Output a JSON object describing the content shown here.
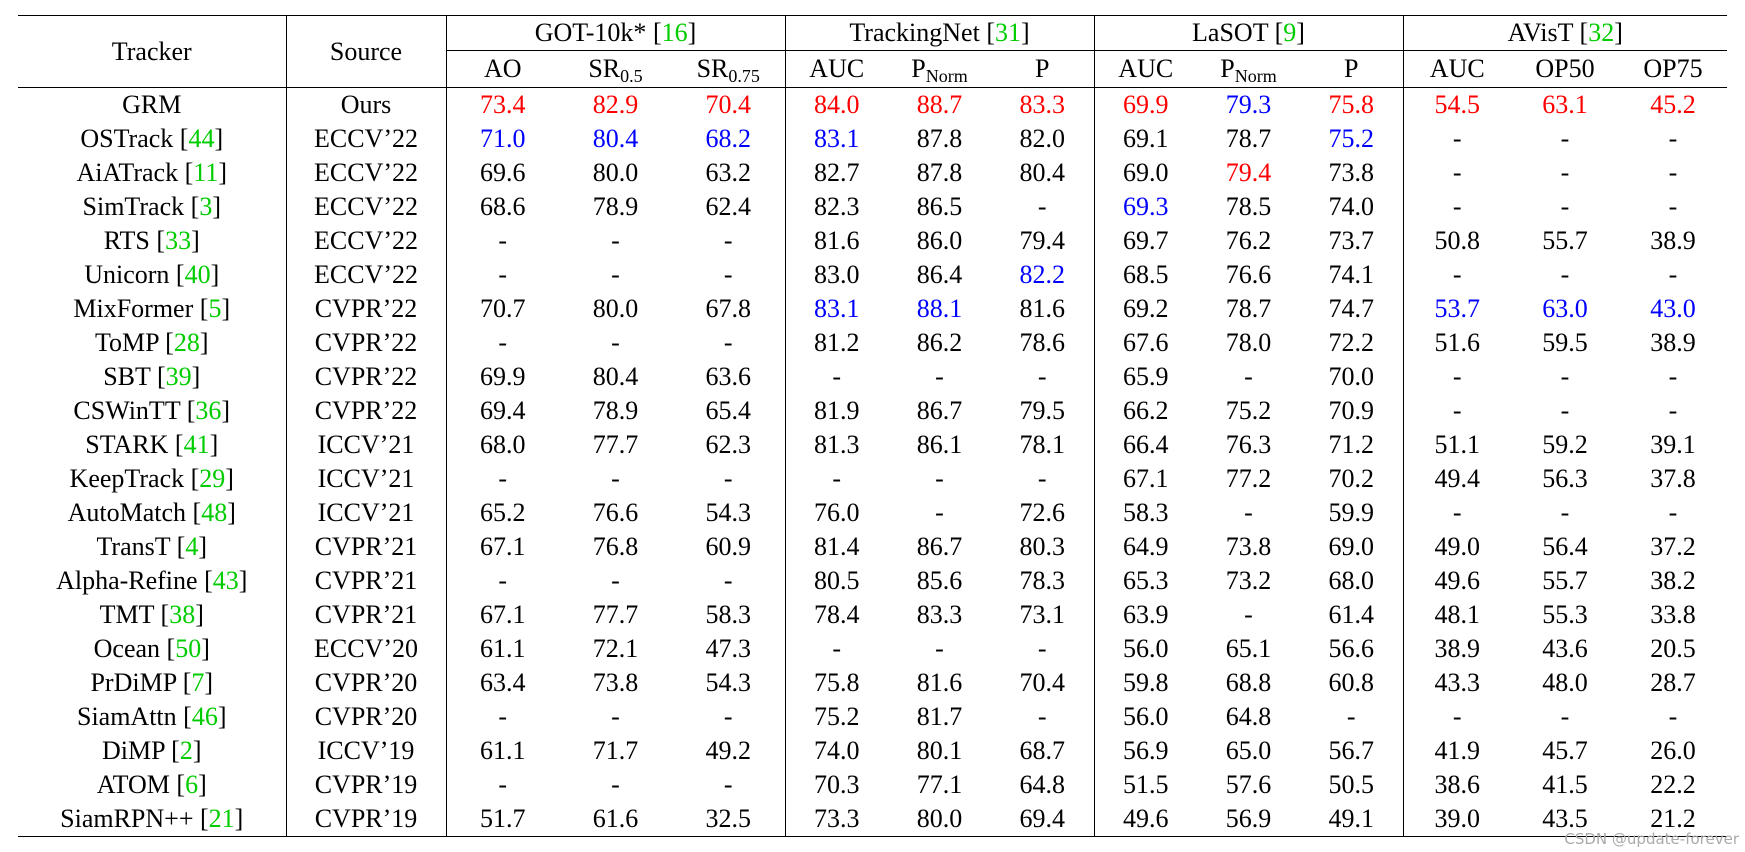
{
  "header": {
    "tracker": "Tracker",
    "source": "Source",
    "cite_open": "[",
    "cite_close": "]",
    "groups": [
      {
        "name": "GOT-10k*",
        "ref": "16",
        "cols": [
          {
            "base": "AO"
          },
          {
            "base": "SR",
            "sub": "0.5"
          },
          {
            "base": "SR",
            "sub": "0.75"
          }
        ]
      },
      {
        "name": "TrackingNet",
        "ref": "31",
        "cols": [
          {
            "base": "AUC"
          },
          {
            "base": "P",
            "sub": "Norm"
          },
          {
            "base": "P"
          }
        ]
      },
      {
        "name": "LaSOT",
        "ref": "9",
        "cols": [
          {
            "base": "AUC"
          },
          {
            "base": "P",
            "sub": "Norm"
          },
          {
            "base": "P"
          }
        ]
      },
      {
        "name": "AVisT",
        "ref": "32",
        "cols": [
          {
            "base": "AUC"
          },
          {
            "base": "OP50"
          },
          {
            "base": "OP75"
          }
        ]
      }
    ]
  },
  "colors": {
    "red": "#ff0000",
    "blue": "#0000ff",
    "cite": "#00cc00"
  },
  "rows": [
    {
      "name": "GRM",
      "source": "Ours",
      "cells": [
        "73.4",
        "82.9",
        "70.4",
        "84.0",
        "88.7",
        "83.3",
        "69.9",
        "79.3",
        "75.8",
        "54.5",
        "63.1",
        "45.2"
      ],
      "red": [
        0,
        1,
        2,
        3,
        4,
        5,
        6,
        8,
        9,
        10,
        11
      ],
      "blue": [
        7
      ]
    },
    {
      "name": "OSTrack",
      "ref": "44",
      "source": "ECCV’22",
      "cells": [
        "71.0",
        "80.4",
        "68.2",
        "83.1",
        "87.8",
        "82.0",
        "69.1",
        "78.7",
        "75.2",
        "-",
        "-",
        "-"
      ],
      "blue": [
        0,
        1,
        2,
        3,
        8
      ]
    },
    {
      "name": "AiATrack",
      "ref": "11",
      "source": "ECCV’22",
      "cells": [
        "69.6",
        "80.0",
        "63.2",
        "82.7",
        "87.8",
        "80.4",
        "69.0",
        "79.4",
        "73.8",
        "-",
        "-",
        "-"
      ],
      "red": [
        7
      ]
    },
    {
      "name": "SimTrack",
      "ref": "3",
      "source": "ECCV’22",
      "cells": [
        "68.6",
        "78.9",
        "62.4",
        "82.3",
        "86.5",
        "-",
        "69.3",
        "78.5",
        "74.0",
        "-",
        "-",
        "-"
      ],
      "blue": [
        6
      ]
    },
    {
      "name": "RTS",
      "ref": "33",
      "source": "ECCV’22",
      "cells": [
        "-",
        "-",
        "-",
        "81.6",
        "86.0",
        "79.4",
        "69.7",
        "76.2",
        "73.7",
        "50.8",
        "55.7",
        "38.9"
      ]
    },
    {
      "name": "Unicorn",
      "ref": "40",
      "source": "ECCV’22",
      "cells": [
        "-",
        "-",
        "-",
        "83.0",
        "86.4",
        "82.2",
        "68.5",
        "76.6",
        "74.1",
        "-",
        "-",
        "-"
      ],
      "blue": [
        5
      ]
    },
    {
      "name": "MixFormer",
      "ref": "5",
      "source": "CVPR’22",
      "cells": [
        "70.7",
        "80.0",
        "67.8",
        "83.1",
        "88.1",
        "81.6",
        "69.2",
        "78.7",
        "74.7",
        "53.7",
        "63.0",
        "43.0"
      ],
      "blue": [
        3,
        4,
        9,
        10,
        11
      ]
    },
    {
      "name": "ToMP",
      "ref": "28",
      "source": "CVPR’22",
      "cells": [
        "-",
        "-",
        "-",
        "81.2",
        "86.2",
        "78.6",
        "67.6",
        "78.0",
        "72.2",
        "51.6",
        "59.5",
        "38.9"
      ]
    },
    {
      "name": "SBT",
      "ref": "39",
      "source": "CVPR’22",
      "cells": [
        "69.9",
        "80.4",
        "63.6",
        "-",
        "-",
        "-",
        "65.9",
        "-",
        "70.0",
        "-",
        "-",
        "-"
      ]
    },
    {
      "name": "CSWinTT",
      "ref": "36",
      "source": "CVPR’22",
      "cells": [
        "69.4",
        "78.9",
        "65.4",
        "81.9",
        "86.7",
        "79.5",
        "66.2",
        "75.2",
        "70.9",
        "-",
        "-",
        "-"
      ]
    },
    {
      "name": "STARK",
      "ref": "41",
      "source": "ICCV’21",
      "cells": [
        "68.0",
        "77.7",
        "62.3",
        "81.3",
        "86.1",
        "78.1",
        "66.4",
        "76.3",
        "71.2",
        "51.1",
        "59.2",
        "39.1"
      ]
    },
    {
      "name": "KeepTrack",
      "ref": "29",
      "source": "ICCV’21",
      "cells": [
        "-",
        "-",
        "-",
        "-",
        "-",
        "-",
        "67.1",
        "77.2",
        "70.2",
        "49.4",
        "56.3",
        "37.8"
      ]
    },
    {
      "name": "AutoMatch",
      "ref": "48",
      "source": "ICCV’21",
      "cells": [
        "65.2",
        "76.6",
        "54.3",
        "76.0",
        "-",
        "72.6",
        "58.3",
        "-",
        "59.9",
        "-",
        "-",
        "-"
      ]
    },
    {
      "name": "TransT",
      "ref": "4",
      "source": "CVPR’21",
      "cells": [
        "67.1",
        "76.8",
        "60.9",
        "81.4",
        "86.7",
        "80.3",
        "64.9",
        "73.8",
        "69.0",
        "49.0",
        "56.4",
        "37.2"
      ]
    },
    {
      "name": "Alpha-Refine",
      "ref": "43",
      "source": "CVPR’21",
      "cells": [
        "-",
        "-",
        "-",
        "80.5",
        "85.6",
        "78.3",
        "65.3",
        "73.2",
        "68.0",
        "49.6",
        "55.7",
        "38.2"
      ]
    },
    {
      "name": "TMT",
      "ref": "38",
      "source": "CVPR’21",
      "cells": [
        "67.1",
        "77.7",
        "58.3",
        "78.4",
        "83.3",
        "73.1",
        "63.9",
        "-",
        "61.4",
        "48.1",
        "55.3",
        "33.8"
      ]
    },
    {
      "name": "Ocean",
      "ref": "50",
      "source": "ECCV’20",
      "cells": [
        "61.1",
        "72.1",
        "47.3",
        "-",
        "-",
        "-",
        "56.0",
        "65.1",
        "56.6",
        "38.9",
        "43.6",
        "20.5"
      ]
    },
    {
      "name": "PrDiMP",
      "ref": "7",
      "source": "CVPR’20",
      "cells": [
        "63.4",
        "73.8",
        "54.3",
        "75.8",
        "81.6",
        "70.4",
        "59.8",
        "68.8",
        "60.8",
        "43.3",
        "48.0",
        "28.7"
      ]
    },
    {
      "name": "SiamAttn",
      "ref": "46",
      "source": "CVPR’20",
      "cells": [
        "-",
        "-",
        "-",
        "75.2",
        "81.7",
        "-",
        "56.0",
        "64.8",
        "-",
        "-",
        "-",
        "-"
      ]
    },
    {
      "name": "DiMP",
      "ref": "2",
      "source": "ICCV’19",
      "cells": [
        "61.1",
        "71.7",
        "49.2",
        "74.0",
        "80.1",
        "68.7",
        "56.9",
        "65.0",
        "56.7",
        "41.9",
        "45.7",
        "26.0"
      ]
    },
    {
      "name": "ATOM",
      "ref": "6",
      "source": "CVPR’19",
      "cells": [
        "-",
        "-",
        "-",
        "70.3",
        "77.1",
        "64.8",
        "51.5",
        "57.6",
        "50.5",
        "38.6",
        "41.5",
        "22.2"
      ]
    },
    {
      "name": "SiamRPN++",
      "ref": "21",
      "source": "CVPR’19",
      "cells": [
        "51.7",
        "61.6",
        "32.5",
        "73.3",
        "80.0",
        "69.4",
        "49.6",
        "56.9",
        "49.1",
        "39.0",
        "43.5",
        "21.2"
      ]
    }
  ],
  "watermark": "CSDN @update-forever"
}
